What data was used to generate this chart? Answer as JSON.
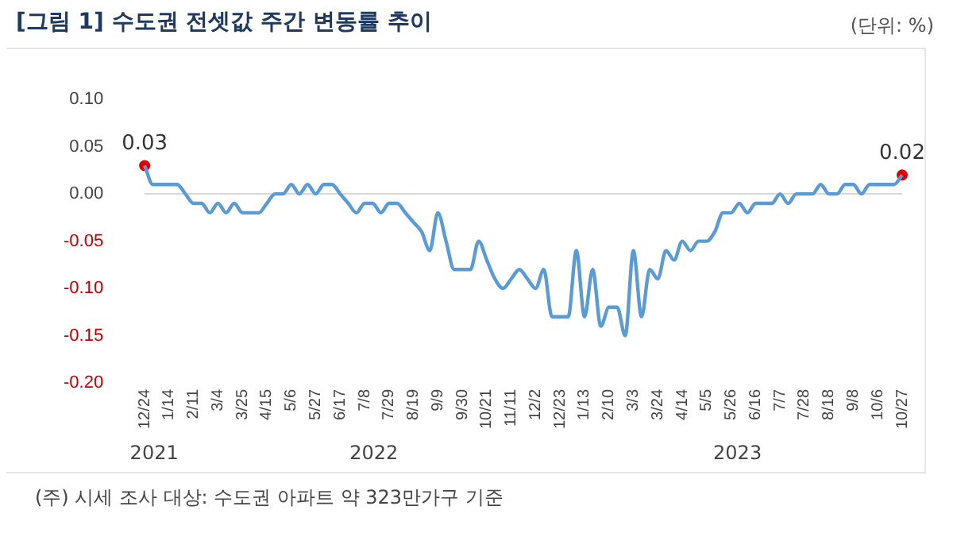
{
  "chart_data": {
    "type": "line",
    "title": "[그림 1] 수도권 전셋값 주간 변동률 추이",
    "categories": [
      "12/24",
      null,
      null,
      "1/14",
      null,
      null,
      "2/11",
      null,
      null,
      "3/4",
      null,
      null,
      "3/25",
      null,
      null,
      "4/15",
      null,
      null,
      "5/6",
      null,
      null,
      "5/27",
      null,
      null,
      "6/17",
      null,
      null,
      "7/8",
      null,
      null,
      "7/29",
      null,
      null,
      "8/19",
      null,
      null,
      "9/9",
      null,
      null,
      "9/30",
      null,
      null,
      "10/21",
      null,
      null,
      "11/11",
      null,
      null,
      "12/2",
      null,
      null,
      "12/23",
      null,
      null,
      "1/13",
      null,
      null,
      "2/10",
      null,
      null,
      "3/3",
      null,
      null,
      "3/24",
      null,
      null,
      "4/14",
      null,
      null,
      "5/5",
      null,
      null,
      "5/26",
      null,
      null,
      "6/16",
      null,
      null,
      "7/7",
      null,
      null,
      "7/28",
      null,
      null,
      "8/18",
      null,
      null,
      "9/8",
      null,
      null,
      "10/6",
      null,
      null,
      "10/27"
    ],
    "series": [
      {
        "type": "line",
        "color": "#5b9bd5",
        "values": [
          0.03,
          0.01,
          0.01,
          0.01,
          0.01,
          0.0,
          -0.01,
          -0.01,
          -0.02,
          -0.01,
          -0.02,
          -0.01,
          -0.02,
          -0.02,
          -0.02,
          -0.01,
          0.0,
          0.0,
          0.01,
          0.0,
          0.01,
          0.0,
          0.01,
          0.01,
          0.0,
          -0.01,
          -0.02,
          -0.01,
          -0.01,
          -0.02,
          -0.01,
          -0.01,
          -0.02,
          -0.03,
          -0.04,
          -0.06,
          -0.02,
          -0.05,
          -0.08,
          -0.08,
          -0.08,
          -0.05,
          -0.07,
          -0.09,
          -0.1,
          -0.09,
          -0.08,
          -0.09,
          -0.1,
          -0.08,
          -0.13,
          -0.13,
          -0.13,
          -0.06,
          -0.13,
          -0.08,
          -0.14,
          -0.12,
          -0.12,
          -0.15,
          -0.06,
          -0.13,
          -0.08,
          -0.09,
          -0.06,
          -0.07,
          -0.05,
          -0.06,
          -0.05,
          -0.05,
          -0.04,
          -0.02,
          -0.02,
          -0.01,
          -0.02,
          -0.01,
          -0.01,
          -0.01,
          0.0,
          -0.01,
          0.0,
          0.0,
          0.0,
          0.01,
          0.0,
          0.0,
          0.01,
          0.01,
          0.0,
          0.01,
          0.01,
          0.01,
          0.01,
          0.02
        ]
      },
      {
        "type": "scatter",
        "color": "#e00000",
        "x": [
          "12/24",
          "10/27"
        ],
        "values": [
          0.03,
          0.02
        ],
        "value_labels": [
          "0.03",
          "0.02"
        ]
      }
    ],
    "ylim": [
      -0.2,
      0.1
    ],
    "yticks": [
      {
        "value": -0.2,
        "label": "-0.20"
      },
      {
        "value": -0.15,
        "label": "-0.15"
      },
      {
        "value": -0.1,
        "label": "-0.10"
      },
      {
        "value": -0.05,
        "label": "-0.05"
      },
      {
        "value": 0,
        "label": "0.00"
      },
      {
        "value": 0.05,
        "label": "0.05"
      },
      {
        "value": 0.1,
        "label": "0.10"
      }
    ],
    "ref_lines": [
      {
        "axis": "y",
        "value": 0,
        "color": "#d9d9d9"
      }
    ],
    "grid": false,
    "legend": false,
    "annotations": [
      "(단위: %)",
      "2021",
      "2022",
      "2023",
      "(주) 시세 조사 대상: 수도권 아파트 약 323만가구 기준"
    ]
  }
}
